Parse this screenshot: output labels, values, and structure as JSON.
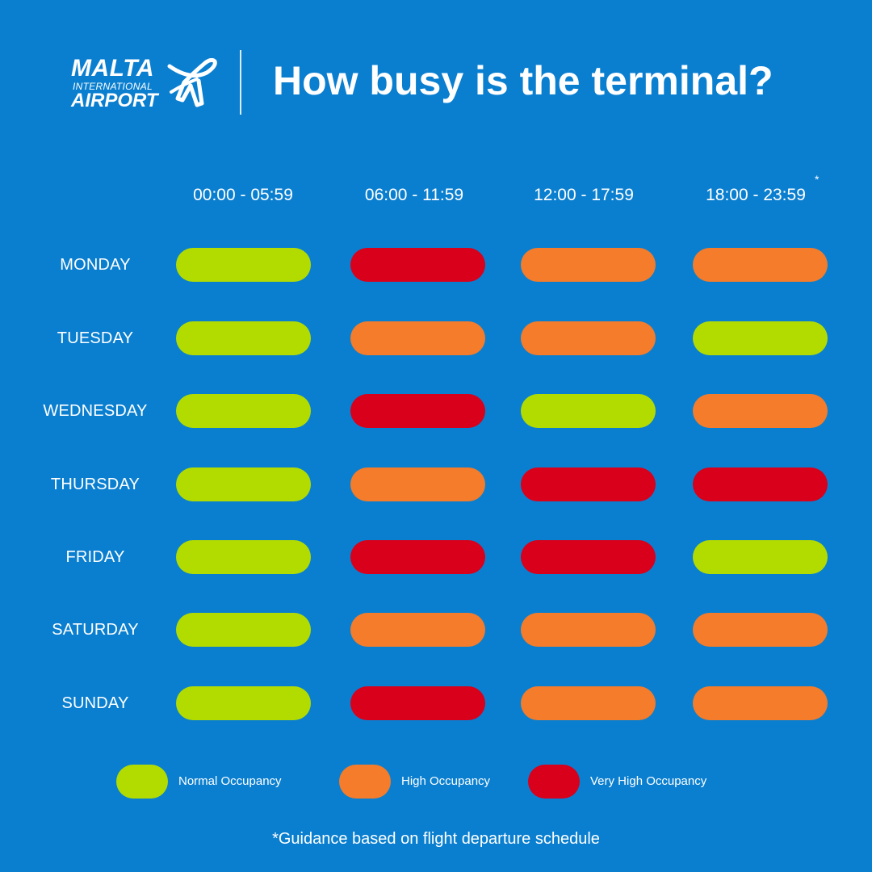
{
  "header": {
    "logo_line1": "MALTA",
    "logo_line2": "INTERNATIONAL",
    "logo_line3": "AIRPORT",
    "title": "How busy is the terminal?"
  },
  "columns": [
    "00:00 - 05:59",
    "06:00 - 11:59",
    "12:00 - 17:59",
    "18:00 - 23:59"
  ],
  "column_asterisk": "*",
  "colors": {
    "background": "#0a7fd0",
    "normal": "#b2dc00",
    "high": "#f47c2a",
    "very_high": "#d9001b"
  },
  "rows": [
    {
      "day": "MONDAY",
      "levels": [
        "normal",
        "very_high",
        "high",
        "high"
      ]
    },
    {
      "day": "TUESDAY",
      "levels": [
        "normal",
        "high",
        "high",
        "normal"
      ]
    },
    {
      "day": "WEDNESDAY",
      "levels": [
        "normal",
        "very_high",
        "normal",
        "high"
      ]
    },
    {
      "day": "THURSDAY",
      "levels": [
        "normal",
        "high",
        "very_high",
        "very_high"
      ]
    },
    {
      "day": "FRIDAY",
      "levels": [
        "normal",
        "very_high",
        "very_high",
        "normal"
      ]
    },
    {
      "day": "SATURDAY",
      "levels": [
        "normal",
        "high",
        "high",
        "high"
      ]
    },
    {
      "day": "SUNDAY",
      "levels": [
        "normal",
        "very_high",
        "high",
        "high"
      ]
    }
  ],
  "legend": [
    {
      "level": "normal",
      "label": "Normal Occupancy"
    },
    {
      "level": "high",
      "label": "High Occupancy"
    },
    {
      "level": "very_high",
      "label": "Very High Occupancy"
    }
  ],
  "footnote": "*Guidance based on flight departure schedule",
  "icons": {
    "logo": "plane-icon"
  }
}
